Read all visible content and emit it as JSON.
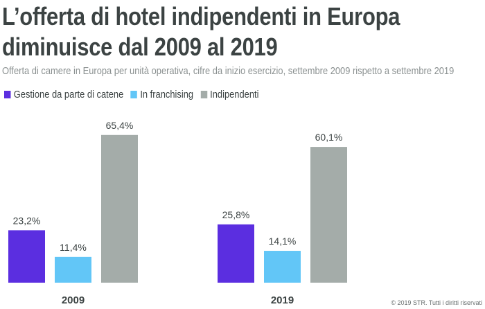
{
  "title_lines": [
    "L’offerta di hotel indipendenti in Europa",
    "diminuisce dal 2009 al 2019"
  ],
  "subtitle": "Offerta di camere in Europa per unità operativa, cifre da inizio esercizio, settembre 2009 rispetto a settembre 2019",
  "footer": "© 2019 STR. Tutti i diritti riservati",
  "chart_data": {
    "type": "bar",
    "categories": [
      "2009",
      "2019"
    ],
    "series": [
      {
        "name": "Gestione da parte di catene",
        "values": [
          23.2,
          25.8
        ],
        "labels": [
          "23,2%",
          "25,8%"
        ],
        "color": "#5b2ee0"
      },
      {
        "name": "In franchising",
        "values": [
          11.4,
          14.1
        ],
        "labels": [
          "11,4%",
          "14,1%"
        ],
        "color": "#62c6f7"
      },
      {
        "name": "Indipendenti",
        "values": [
          65.4,
          60.1
        ],
        "labels": [
          "65,4%",
          "60,1%"
        ],
        "color": "#a4aca9"
      }
    ],
    "legend": "top-left",
    "grid": false,
    "ylim": [
      0,
      70
    ]
  }
}
